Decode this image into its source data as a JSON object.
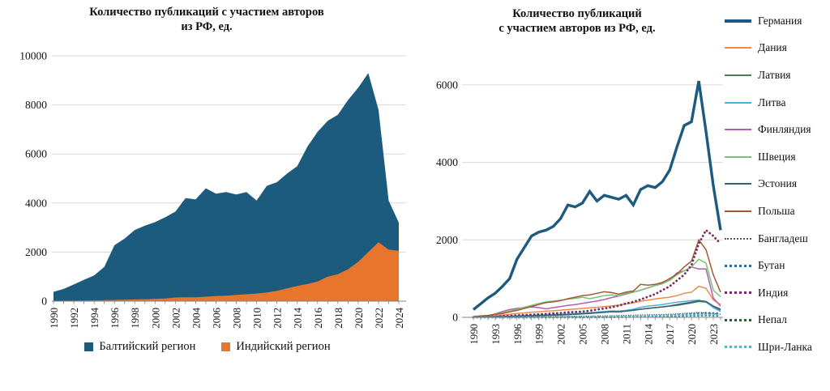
{
  "page": {
    "background": "#ffffff",
    "grid_color": "#d9d9d9",
    "axis_color": "#808080",
    "text_color": "#111111"
  },
  "chart_data": [
    {
      "type": "area",
      "title_line1": "Количество публикаций с участием авторов",
      "title_line2": "из РФ, ед.",
      "years": [
        1990,
        1991,
        1992,
        1993,
        1994,
        1995,
        1996,
        1997,
        1998,
        1999,
        2000,
        2001,
        2002,
        2003,
        2004,
        2005,
        2006,
        2007,
        2008,
        2009,
        2010,
        2011,
        2012,
        2013,
        2014,
        2015,
        2016,
        2017,
        2018,
        2019,
        2020,
        2021,
        2022,
        2023,
        2024
      ],
      "x_tick_labels": [
        "1990",
        "1992",
        "1994",
        "1996",
        "1998",
        "2000",
        "2002",
        "2004",
        "2006",
        "2008",
        "2010",
        "2012",
        "2014",
        "2016",
        "2018",
        "2020",
        "2022",
        "2024"
      ],
      "y_ticks": [
        0,
        2000,
        4000,
        6000,
        8000,
        10000
      ],
      "ylim": [
        0,
        10000
      ],
      "grid": true,
      "legend_position": "bottom",
      "series": [
        {
          "name": "Балтийский регион",
          "color": "#1d5b7e",
          "line_style": "solid",
          "values": [
            380,
            500,
            680,
            870,
            1050,
            1400,
            2280,
            2550,
            2900,
            3080,
            3220,
            3420,
            3650,
            4200,
            4150,
            4600,
            4380,
            4450,
            4350,
            4450,
            4100,
            4700,
            4850,
            5200,
            5500,
            6300,
            6900,
            7350,
            7600,
            8200,
            8700,
            9300,
            7800,
            4100,
            3200
          ]
        },
        {
          "name": "Индийский регион",
          "color": "#e8752c",
          "line_style": "solid",
          "values": [
            10,
            15,
            20,
            25,
            30,
            40,
            50,
            60,
            70,
            80,
            90,
            110,
            150,
            160,
            160,
            180,
            210,
            220,
            250,
            280,
            310,
            350,
            420,
            520,
            620,
            700,
            800,
            1000,
            1100,
            1300,
            1600,
            2000,
            2400,
            2100,
            2050
          ]
        }
      ]
    },
    {
      "type": "line",
      "title_line1": "Количество публикаций",
      "title_line2": "с участием авторов из РФ, ед.",
      "years": [
        1990,
        1991,
        1992,
        1993,
        1994,
        1995,
        1996,
        1997,
        1998,
        1999,
        2000,
        2001,
        2002,
        2003,
        2004,
        2005,
        2006,
        2007,
        2008,
        2009,
        2010,
        2011,
        2012,
        2013,
        2014,
        2015,
        2016,
        2017,
        2018,
        2019,
        2020,
        2021,
        2022,
        2023,
        2024
      ],
      "x_tick_labels": [
        "1990",
        "1993",
        "1996",
        "1999",
        "2002",
        "2005",
        "2008",
        "2011",
        "2014",
        "2017",
        "2020",
        "2023"
      ],
      "y_ticks": [
        0,
        2000,
        4000,
        6000
      ],
      "ylim": [
        0,
        6400
      ],
      "grid": true,
      "legend_position": "right",
      "series": [
        {
          "name": "Германия",
          "color": "#1d5b7e",
          "line_style": "thick",
          "values": [
            200,
            350,
            500,
            620,
            800,
            1000,
            1500,
            1800,
            2100,
            2200,
            2250,
            2350,
            2550,
            2900,
            2850,
            2950,
            3250,
            3000,
            3150,
            3100,
            3050,
            3150,
            2900,
            3300,
            3400,
            3350,
            3500,
            3800,
            4400,
            4950,
            5050,
            6100,
            4800,
            3400,
            2250
          ]
        },
        {
          "name": "Дания",
          "color": "#ed8a4e",
          "line_style": "solid",
          "values": [
            10,
            15,
            25,
            40,
            60,
            80,
            100,
            115,
            130,
            145,
            160,
            170,
            185,
            200,
            215,
            230,
            245,
            260,
            275,
            295,
            315,
            345,
            375,
            415,
            445,
            475,
            500,
            520,
            560,
            620,
            650,
            800,
            750,
            450,
            330
          ]
        },
        {
          "name": "Латвия",
          "color": "#4e7d5b",
          "line_style": "solid",
          "values": [
            5,
            8,
            12,
            15,
            20,
            25,
            30,
            35,
            40,
            45,
            50,
            55,
            60,
            70,
            80,
            90,
            100,
            115,
            130,
            145,
            140,
            160,
            180,
            210,
            230,
            250,
            270,
            290,
            310,
            340,
            370,
            410,
            390,
            260,
            190
          ]
        },
        {
          "name": "Литва",
          "color": "#4fb0dc",
          "line_style": "solid",
          "values": [
            5,
            8,
            12,
            16,
            22,
            28,
            35,
            42,
            50,
            58,
            65,
            70,
            78,
            88,
            98,
            110,
            122,
            135,
            150,
            165,
            160,
            180,
            210,
            260,
            290,
            310,
            330,
            360,
            390,
            410,
            430,
            440,
            400,
            250,
            150
          ]
        },
        {
          "name": "Финляндия",
          "color": "#b25fb2",
          "line_style": "solid",
          "values": [
            10,
            20,
            40,
            90,
            150,
            200,
            230,
            250,
            270,
            250,
            220,
            250,
            280,
            310,
            330,
            360,
            390,
            420,
            460,
            510,
            550,
            600,
            650,
            700,
            760,
            820,
            870,
            960,
            1150,
            1200,
            1300,
            1250,
            1250,
            500,
            290
          ]
        },
        {
          "name": "Швеция",
          "color": "#76c576",
          "line_style": "solid",
          "values": [
            10,
            20,
            40,
            80,
            120,
            160,
            210,
            260,
            310,
            360,
            400,
            420,
            440,
            470,
            490,
            520,
            480,
            520,
            560,
            580,
            560,
            620,
            650,
            700,
            760,
            820,
            880,
            950,
            1100,
            1200,
            1300,
            1500,
            1400,
            700,
            530
          ]
        },
        {
          "name": "Эстония",
          "color": "#3a5e72",
          "line_style": "solid",
          "values": [
            5,
            7,
            10,
            13,
            17,
            22,
            28,
            34,
            40,
            47,
            55,
            60,
            66,
            74,
            84,
            95,
            106,
            118,
            132,
            146,
            140,
            160,
            185,
            210,
            230,
            250,
            270,
            295,
            330,
            360,
            390,
            430,
            410,
            290,
            210
          ]
        },
        {
          "name": "Польша",
          "color": "#a3592f",
          "line_style": "solid",
          "values": [
            20,
            35,
            50,
            75,
            100,
            140,
            180,
            230,
            280,
            330,
            380,
            400,
            430,
            480,
            520,
            560,
            580,
            620,
            660,
            640,
            600,
            650,
            680,
            850,
            830,
            850,
            900,
            1000,
            1120,
            1300,
            1450,
            2000,
            1750,
            1100,
            650
          ]
        },
        {
          "name": "Бангладеш",
          "color": "#595959",
          "line_style": "finedot",
          "values": [
            2,
            3,
            4,
            5,
            6,
            8,
            10,
            12,
            14,
            16,
            18,
            20,
            22,
            25,
            28,
            30,
            32,
            35,
            38,
            40,
            45,
            50,
            55,
            60,
            65,
            70,
            75,
            80,
            90,
            100,
            110,
            120,
            115,
            95,
            80
          ]
        },
        {
          "name": "Бутан",
          "color": "#2a6f9e",
          "line_style": "dot",
          "values": [
            0,
            0,
            0,
            0,
            0,
            0,
            0,
            0,
            0,
            0,
            2,
            2,
            3,
            3,
            4,
            5,
            5,
            6,
            8,
            10,
            12,
            15,
            18,
            20,
            25,
            30,
            40,
            50,
            60,
            70,
            85,
            100,
            110,
            105,
            95
          ]
        },
        {
          "name": "Индия",
          "color": "#762a68",
          "line_style": "dot",
          "values": [
            5,
            10,
            15,
            20,
            30,
            40,
            50,
            60,
            70,
            80,
            90,
            100,
            110,
            130,
            140,
            150,
            170,
            200,
            230,
            260,
            300,
            360,
            400,
            460,
            530,
            600,
            700,
            800,
            950,
            1100,
            1350,
            1900,
            2250,
            2100,
            1900
          ]
        },
        {
          "name": "Непал",
          "color": "#2d5c3a",
          "line_style": "dot",
          "values": [
            0,
            0,
            0,
            0,
            0,
            0,
            0,
            0,
            0,
            2,
            2,
            3,
            3,
            4,
            5,
            5,
            6,
            8,
            10,
            10,
            12,
            15,
            18,
            20,
            22,
            25,
            28,
            30,
            35,
            40,
            45,
            50,
            55,
            50,
            45
          ]
        },
        {
          "name": "Шри-Ланка",
          "color": "#49b6d8",
          "line_style": "dot",
          "values": [
            0,
            0,
            0,
            0,
            0,
            0,
            2,
            2,
            3,
            3,
            4,
            5,
            5,
            6,
            8,
            10,
            10,
            12,
            15,
            18,
            20,
            22,
            25,
            28,
            30,
            35,
            40,
            45,
            50,
            55,
            60,
            70,
            75,
            70,
            60
          ]
        }
      ]
    }
  ]
}
